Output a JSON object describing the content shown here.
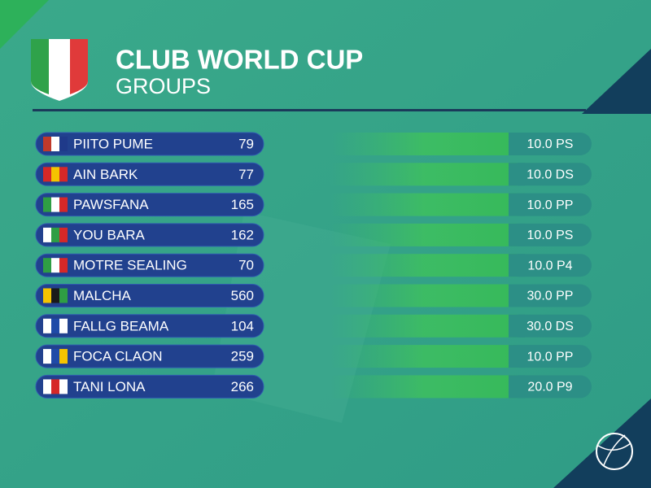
{
  "header": {
    "title": "CLUB WORLD CUP",
    "subtitle": "GROUPS"
  },
  "rows": [
    {
      "name": "PIITO PUME",
      "value": 79,
      "stat": "10.0 PS"
    },
    {
      "name": "AIN BARK",
      "value": 77,
      "stat": "10.0 DS"
    },
    {
      "name": "PAWSFANA",
      "value": 165,
      "stat": "10.0 PP"
    },
    {
      "name": "YOU BARA",
      "value": 162,
      "stat": "10.0 PS"
    },
    {
      "name": "MOTRE SEALING",
      "value": 70,
      "stat": "10.0 P4"
    },
    {
      "name": "MALCHA",
      "value": 560,
      "stat": "30.0 PP"
    },
    {
      "name": "FALLG BEAMA",
      "value": 104,
      "stat": "30.0 DS"
    },
    {
      "name": "FOCA CLAON",
      "value": 259,
      "stat": "10.0 PP"
    },
    {
      "name": "TANI LONA",
      "value": 266,
      "stat": "20.0 P9"
    }
  ]
}
